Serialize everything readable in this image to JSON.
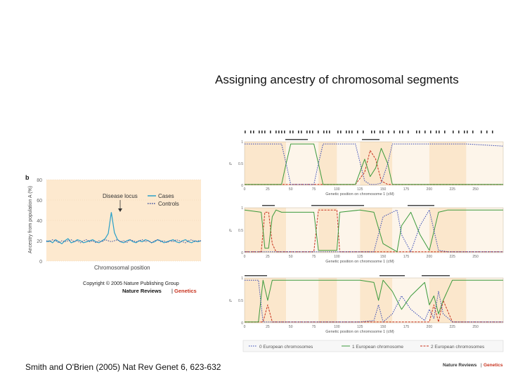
{
  "slide": {
    "title": "Assigning ancestry of chromosomal segments",
    "citation": "Smith and O'Brien (2005) Nat Rev Genet 6, 623-632"
  },
  "panel_b": {
    "label": "b",
    "copyright": "Copyright © 2005 Nature Publishing Group",
    "journal_name": "Nature Reviews",
    "journal_section": "Genetics",
    "annotation": "Disease locus"
  },
  "panel_right": {
    "footer_journal": "Nature Reviews",
    "footer_section": "Genetics"
  },
  "colors": {
    "cases": "#2aa0c8",
    "controls": "#3a4fa0",
    "p_red": "#c8321e",
    "p_green": "#3c9a3c",
    "p_blue": "#3246b4",
    "bg_warm": "#fbe7cc",
    "bg_cool": "#fdf5ea"
  },
  "chart_data": [
    {
      "type": "line",
      "xlabel": "Chromosomal position",
      "ylabel": "Ancestry from population A (%)",
      "ylim": [
        0,
        80
      ],
      "yticks": [
        "0",
        "20",
        "40",
        "60",
        "80"
      ],
      "grid": true,
      "legend_position": "top-right",
      "series": [
        {
          "name": "Cases",
          "style": "solid",
          "x": [
            0,
            2,
            4,
            6,
            8,
            10,
            12,
            14,
            16,
            18,
            20,
            22,
            24,
            26,
            28,
            30,
            32,
            34,
            36,
            38,
            40,
            42,
            44,
            46,
            48,
            50,
            52,
            54,
            56,
            58,
            60,
            62,
            64,
            66,
            68,
            70,
            72,
            74,
            76,
            78,
            80,
            82,
            84,
            86,
            88,
            90,
            92,
            94,
            96,
            98,
            100
          ],
          "values": [
            19,
            20,
            18,
            21,
            19,
            17,
            20,
            22,
            18,
            19,
            21,
            20,
            18,
            19,
            20,
            21,
            19,
            18,
            20,
            22,
            27,
            48,
            28,
            21,
            19,
            18,
            20,
            21,
            19,
            18,
            20,
            19,
            21,
            20,
            18,
            19,
            21,
            20,
            18,
            19,
            20,
            21,
            19,
            18,
            20,
            21,
            19,
            18,
            20,
            19,
            20
          ]
        },
        {
          "name": "Controls",
          "style": "dotted",
          "x": [
            0,
            2,
            4,
            6,
            8,
            10,
            12,
            14,
            16,
            18,
            20,
            22,
            24,
            26,
            28,
            30,
            32,
            34,
            36,
            38,
            40,
            42,
            44,
            46,
            48,
            50,
            52,
            54,
            56,
            58,
            60,
            62,
            64,
            66,
            68,
            70,
            72,
            74,
            76,
            78,
            80,
            82,
            84,
            86,
            88,
            90,
            92,
            94,
            96,
            98,
            100
          ],
          "values": [
            20,
            19,
            21,
            20,
            18,
            20,
            19,
            20,
            21,
            19,
            20,
            18,
            20,
            21,
            19,
            20,
            18,
            20,
            19,
            21,
            20,
            19,
            20,
            21,
            19,
            20,
            18,
            21,
            20,
            19,
            20,
            21,
            19,
            20,
            18,
            20,
            21,
            19,
            20,
            18,
            20,
            19,
            21,
            20,
            19,
            18,
            20,
            21,
            19,
            20,
            20
          ]
        }
      ]
    },
    {
      "type": "line",
      "xlabel": "Genetic position on chromosome 1 (cM)",
      "ylabel": "P",
      "xlim": [
        0,
        280
      ],
      "ylim": [
        0,
        1
      ],
      "xticks": [
        "0",
        "25",
        "50",
        "75",
        "100",
        "125",
        "150",
        "175",
        "200",
        "225",
        "250"
      ],
      "yticks": [
        "0",
        "0.5",
        "1"
      ],
      "series": [
        {
          "name": "0 European chromosomes",
          "color": "#c8321e",
          "x": [
            0,
            40,
            45,
            50,
            75,
            80,
            85,
            120,
            130,
            136,
            142,
            148,
            155,
            160,
            200,
            240,
            280
          ],
          "values": [
            0.02,
            0.02,
            0.02,
            0.02,
            0.02,
            0.02,
            0.02,
            0.02,
            0.3,
            0.8,
            0.6,
            0.1,
            0.02,
            0.02,
            0.02,
            0.02,
            0.02
          ]
        },
        {
          "name": "1 European chromosome",
          "color": "#3c9a3c",
          "x": [
            0,
            20,
            40,
            45,
            50,
            75,
            80,
            85,
            120,
            130,
            136,
            142,
            148,
            155,
            160,
            200,
            240,
            280
          ],
          "values": [
            0.02,
            0.02,
            0.02,
            0.5,
            0.95,
            0.95,
            0.5,
            0.02,
            0.02,
            0.6,
            0.2,
            0.4,
            0.85,
            0.5,
            0.02,
            0.02,
            0.02,
            0.02
          ]
        },
        {
          "name": "2 European chromosomes",
          "color": "#3246b4",
          "x": [
            0,
            20,
            40,
            45,
            50,
            75,
            80,
            85,
            120,
            130,
            136,
            142,
            148,
            155,
            160,
            200,
            240,
            280
          ],
          "values": [
            0.95,
            0.95,
            0.95,
            0.5,
            0.02,
            0.02,
            0.5,
            0.95,
            0.95,
            0.1,
            0.02,
            0.02,
            0.05,
            0.5,
            0.95,
            0.95,
            0.95,
            0.9
          ]
        }
      ]
    },
    {
      "type": "line",
      "xlabel": "Genetic position on chromosome 1 (cM)",
      "ylabel": "P",
      "xlim": [
        0,
        280
      ],
      "ylim": [
        0,
        1
      ],
      "xticks": [
        "0",
        "25",
        "50",
        "75",
        "100",
        "125",
        "150",
        "175",
        "200",
        "225",
        "250"
      ],
      "yticks": [
        "0",
        "0.5",
        "1"
      ],
      "series": [
        {
          "name": "0 European chromosomes",
          "color": "#c8321e",
          "x": [
            0,
            18,
            22,
            26,
            30,
            34,
            75,
            80,
            100,
            103,
            140,
            180,
            220,
            280
          ],
          "values": [
            0.02,
            0.02,
            0.9,
            0.9,
            0.2,
            0.02,
            0.02,
            0.95,
            0.95,
            0.02,
            0.02,
            0.02,
            0.02,
            0.02
          ]
        },
        {
          "name": "1 European chromosome",
          "color": "#3c9a3c",
          "x": [
            0,
            18,
            22,
            26,
            30,
            34,
            40,
            75,
            80,
            100,
            103,
            125,
            140,
            150,
            165,
            170,
            180,
            190,
            200,
            210,
            220,
            280
          ],
          "values": [
            0.95,
            0.9,
            0.1,
            0.1,
            0.8,
            0.95,
            0.9,
            0.9,
            0.05,
            0.05,
            0.9,
            0.95,
            0.9,
            0.2,
            0.02,
            0.6,
            0.9,
            0.4,
            0.05,
            0.9,
            0.95,
            0.95
          ]
        },
        {
          "name": "2 European chromosomes",
          "color": "#3246b4",
          "x": [
            0,
            40,
            75,
            103,
            140,
            150,
            165,
            170,
            180,
            190,
            200,
            210,
            220,
            280
          ],
          "values": [
            0.02,
            0.02,
            0.02,
            0.02,
            0.02,
            0.8,
            0.95,
            0.4,
            0.02,
            0.6,
            0.95,
            0.05,
            0.02,
            0.02
          ]
        }
      ]
    },
    {
      "type": "line",
      "xlabel": "Genetic position on chromosome 1 (cM)",
      "ylabel": "P",
      "xlim": [
        0,
        280
      ],
      "ylim": [
        0,
        1
      ],
      "xticks": [
        "0",
        "25",
        "50",
        "75",
        "100",
        "125",
        "150",
        "175",
        "200",
        "225",
        "250"
      ],
      "yticks": [
        "0",
        "0.5",
        "1"
      ],
      "series": [
        {
          "name": "0 European chromosomes",
          "color": "#c8321e",
          "x": [
            0,
            20,
            25,
            30,
            150,
            200,
            205,
            210,
            215,
            225,
            280
          ],
          "values": [
            0.02,
            0.02,
            0.4,
            0.02,
            0.02,
            0.02,
            0.4,
            0.02,
            0.5,
            0.02,
            0.02
          ]
        },
        {
          "name": "1 European chromosome",
          "color": "#3c9a3c",
          "x": [
            0,
            15,
            20,
            25,
            30,
            40,
            125,
            140,
            145,
            150,
            160,
            170,
            180,
            195,
            200,
            205,
            210,
            215,
            225,
            280
          ],
          "values": [
            0.02,
            0.02,
            0.95,
            0.5,
            0.95,
            0.95,
            0.95,
            0.9,
            0.5,
            0.95,
            0.7,
            0.3,
            0.6,
            0.9,
            0.4,
            0.6,
            0.2,
            0.5,
            0.95,
            0.95
          ]
        },
        {
          "name": "2 European chromosomes",
          "color": "#3246b4",
          "x": [
            0,
            15,
            20,
            40,
            125,
            140,
            145,
            150,
            160,
            170,
            180,
            195,
            200,
            205,
            210,
            215,
            225,
            280
          ],
          "values": [
            0.95,
            0.95,
            0.02,
            0.02,
            0.02,
            0.05,
            0.4,
            0.02,
            0.2,
            0.6,
            0.3,
            0.05,
            0.3,
            0.1,
            0.7,
            0.2,
            0.02,
            0.02
          ]
        }
      ]
    }
  ]
}
